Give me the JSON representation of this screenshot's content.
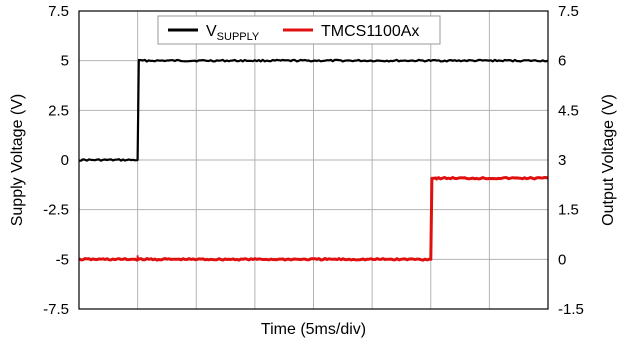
{
  "chart_data": {
    "type": "line",
    "xlabel": "Time (5ms/div)",
    "ylabel_left": "Supply Voltage (V)",
    "ylabel_right": "Output Voltage (V)",
    "x_divisions": 8,
    "xlim": [
      0,
      8
    ],
    "ylim_left": [
      -7.5,
      7.5
    ],
    "ylim_right": [
      -1.5,
      7.5
    ],
    "left_ticks": [
      "7.5",
      "5",
      "2.5",
      "0",
      "-2.5",
      "-5",
      "-7.5"
    ],
    "right_ticks": [
      "7.5",
      "6",
      "4.5",
      "3",
      "1.5",
      "0",
      "-1.5"
    ],
    "grid": true,
    "legend_position": "top-center",
    "series": [
      {
        "name": "V",
        "name_subscript": "SUPPLY",
        "color": "#000000",
        "axis": "left",
        "x": [
          0,
          1.0,
          1.02,
          8
        ],
        "y": [
          0,
          0,
          5,
          5
        ]
      },
      {
        "name": "TMCS1100Ax",
        "color": "#e01010",
        "axis": "right",
        "x": [
          0,
          6.0,
          6.02,
          6.1,
          8
        ],
        "y": [
          0,
          0,
          2.45,
          2.45,
          2.45
        ]
      }
    ]
  }
}
